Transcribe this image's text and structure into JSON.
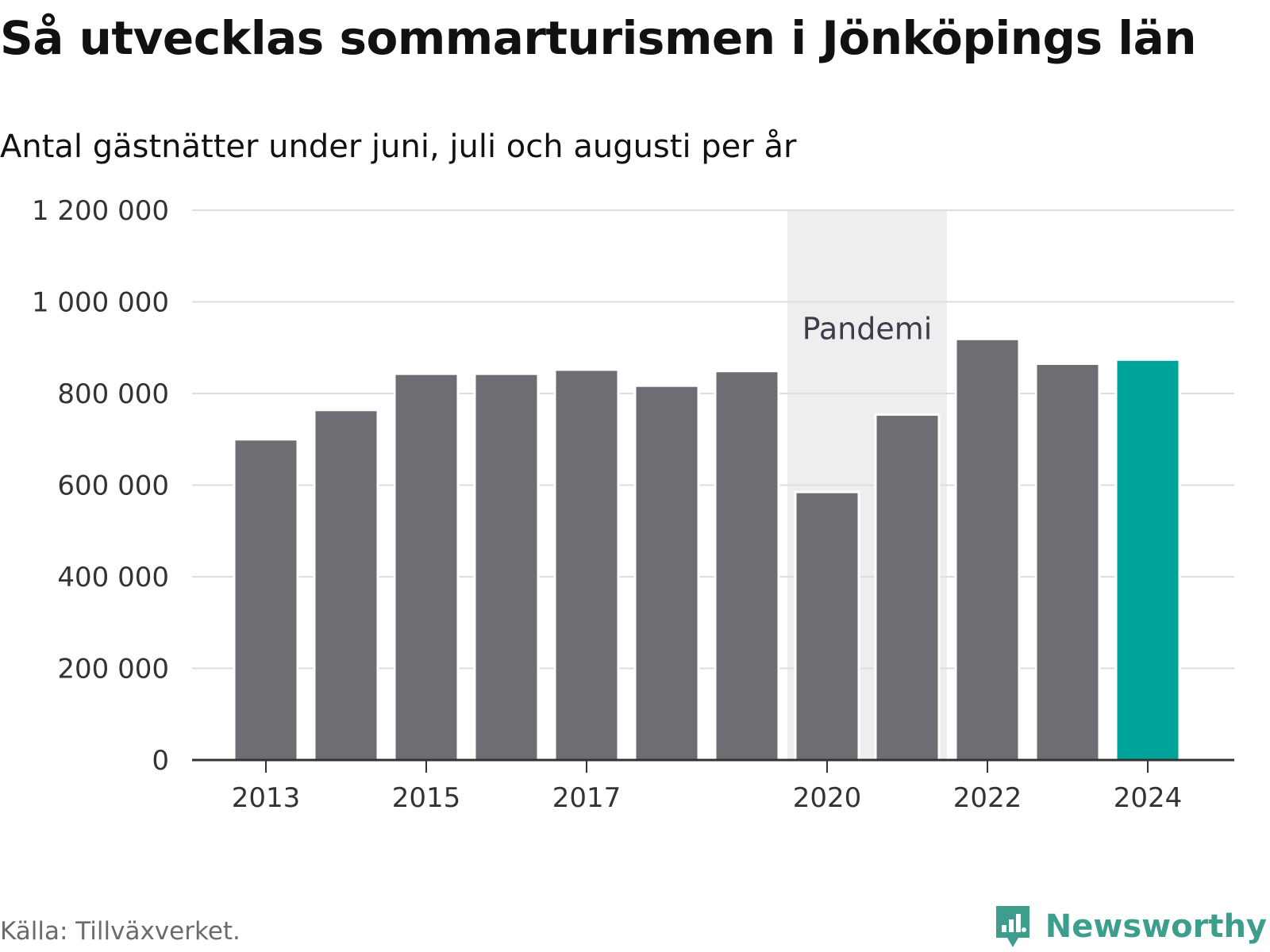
{
  "title": "Så utvecklas sommarturismen i Jönköpings län",
  "subtitle": "Antal gästnätter under juni, juli och augusti per år",
  "source": "Källa: Tillväxverket.",
  "brand": {
    "name": "Newsworthy",
    "icon": "newsworthy-logo-icon",
    "color": "#3e9e8e"
  },
  "colors": {
    "bar": "#6e6d74",
    "highlight": "#00a39a",
    "shade": "#eeeeee",
    "grid": "#dddddd",
    "axis": "#333333"
  },
  "chart_data": {
    "type": "bar",
    "categories": [
      "2013",
      "2014",
      "2015",
      "2016",
      "2017",
      "2018",
      "2019",
      "2020",
      "2021",
      "2022",
      "2023",
      "2024"
    ],
    "values": [
      700000,
      764000,
      843000,
      843000,
      852000,
      817000,
      849000,
      585000,
      754000,
      919000,
      865000,
      874000
    ],
    "highlight_category": "2024",
    "x_tick_labels": [
      "2013",
      "2015",
      "2017",
      "2020",
      "2022",
      "2024"
    ],
    "y_ticks": [
      0,
      200000,
      400000,
      600000,
      800000,
      1000000,
      1200000
    ],
    "y_tick_labels": [
      "0",
      "200 000",
      "400 000",
      "600 000",
      "800 000",
      "1 000 000",
      "1 200 000"
    ],
    "ylim": [
      0,
      1200000
    ],
    "xlabel": "",
    "ylabel": "",
    "grid": true,
    "annotations": [
      {
        "type": "shaded-range",
        "from": "2020",
        "to": "2021",
        "label": "Pandemi"
      }
    ]
  }
}
